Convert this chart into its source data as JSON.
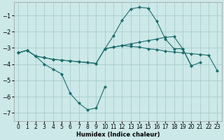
{
  "xlabel": "Humidex (Indice chaleur)",
  "background_color": "#cce8e8",
  "grid_color": "#aacccc",
  "line_color": "#1a6b6b",
  "x_values": [
    0,
    1,
    2,
    3,
    4,
    5,
    6,
    7,
    8,
    9,
    10,
    11,
    12,
    13,
    14,
    15,
    16,
    17,
    18,
    19,
    20,
    21,
    22,
    23
  ],
  "series1": [
    -3.3,
    -3.15,
    -3.5,
    -4.0,
    -4.3,
    -4.6,
    -5.8,
    -6.4,
    -6.8,
    -6.7,
    -5.4,
    null,
    null,
    null,
    null,
    null,
    null,
    null,
    null,
    null,
    null,
    null,
    null,
    null
  ],
  "series2": [
    -3.3,
    -3.15,
    -3.5,
    -3.6,
    -3.7,
    -3.75,
    -3.8,
    -3.85,
    -3.9,
    -3.95,
    -3.05,
    -2.95,
    -2.85,
    -2.9,
    -2.95,
    -3.05,
    -3.1,
    -3.2,
    -3.25,
    -3.3,
    -3.35,
    -3.4,
    -3.45,
    -4.4
  ],
  "series3": [
    -3.3,
    -3.15,
    -3.5,
    -3.6,
    -3.7,
    -3.75,
    -3.8,
    -3.85,
    -3.9,
    -3.95,
    -3.05,
    -2.95,
    -2.85,
    -2.75,
    -2.65,
    -2.55,
    -2.45,
    -2.35,
    -2.3,
    -3.05,
    -4.1,
    null,
    null,
    null
  ],
  "series4": [
    null,
    null,
    null,
    null,
    null,
    null,
    null,
    null,
    null,
    null,
    -3.05,
    -2.25,
    -1.3,
    -0.6,
    -0.5,
    -0.55,
    -1.35,
    -2.45,
    -3.05,
    -3.05,
    -4.1,
    -3.9,
    null,
    null
  ],
  "ylim": [
    -7.5,
    -0.2
  ],
  "xlim": [
    -0.5,
    23.5
  ],
  "yticks": [
    -7,
    -6,
    -5,
    -4,
    -3,
    -2,
    -1
  ],
  "xticks": [
    0,
    1,
    2,
    3,
    4,
    5,
    6,
    7,
    8,
    9,
    10,
    11,
    12,
    13,
    14,
    15,
    16,
    17,
    18,
    19,
    20,
    21,
    22,
    23
  ]
}
